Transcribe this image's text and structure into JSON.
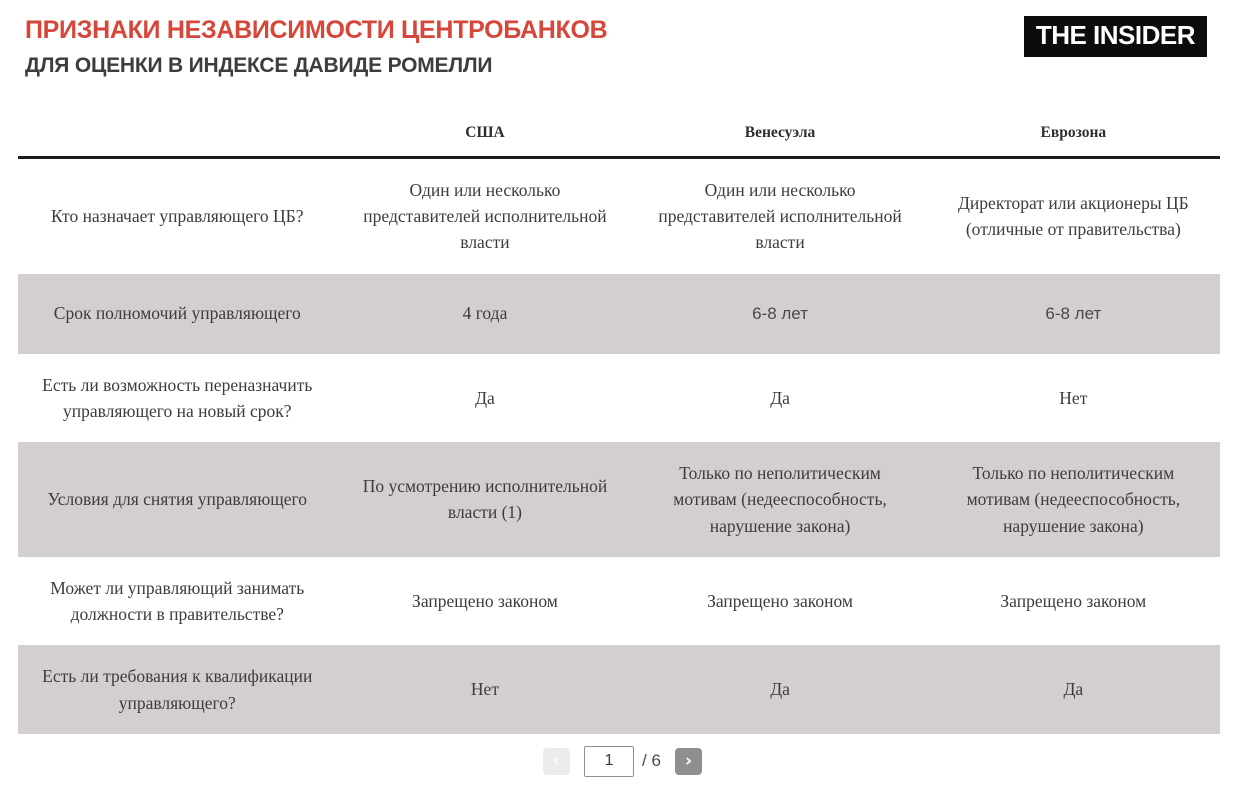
{
  "header": {
    "title": "ПРИЗНАКИ НЕЗАВИСИМОСТИ ЦЕНТРОБАНКОВ",
    "subtitle": "ДЛЯ ОЦЕНКИ В ИНДЕКСЕ ДАВИДЕ РОМЕЛЛИ",
    "logo_text": "THE INSIDER",
    "accent_color": "#d6473a",
    "logo_bg_color": "#0c0c0c"
  },
  "table": {
    "columns": [
      "США",
      "Венесуэла",
      "Еврозона"
    ],
    "shaded_row_color": "#d2cfce",
    "rows": [
      {
        "label": "Кто назначает управляющего ЦБ?",
        "shaded": false,
        "cells": [
          "Один или несколько представителей исполнительной власти",
          "Один или несколько представителей исполнительной власти",
          "Директорат или акционеры ЦБ (отличные от правительства)"
        ]
      },
      {
        "label": "Срок полномочий управляющего",
        "shaded": true,
        "cells": [
          "4 года",
          {
            "text": "6-8 лет",
            "sans": true
          },
          {
            "text": "6-8 лет",
            "sans": true
          }
        ]
      },
      {
        "label": "Есть ли возможность переназначить управляющего на новый срок?",
        "shaded": false,
        "cells": [
          "Да",
          "Да",
          "Нет"
        ]
      },
      {
        "label": "Условия для снятия управляющего",
        "shaded": true,
        "cells": [
          "По усмотрению исполнительной власти (1)",
          "Только по неполитическим мотивам (недееспособность, нарушение закона)",
          "Только по неполитическим мотивам (недееспособность, нарушение закона)"
        ]
      },
      {
        "label": "Может ли управляющий занимать должности в правительстве?",
        "shaded": false,
        "cells": [
          "Запрещено законом",
          "Запрещено законом",
          "Запрещено законом"
        ]
      },
      {
        "label": "Есть ли требования к квалификации управляющего?",
        "shaded": true,
        "cells": [
          "Нет",
          "Да",
          "Да"
        ]
      }
    ]
  },
  "pagination": {
    "prev_label": "‹",
    "next_label": "›",
    "current_page": "1",
    "total_label": "/ 6"
  }
}
